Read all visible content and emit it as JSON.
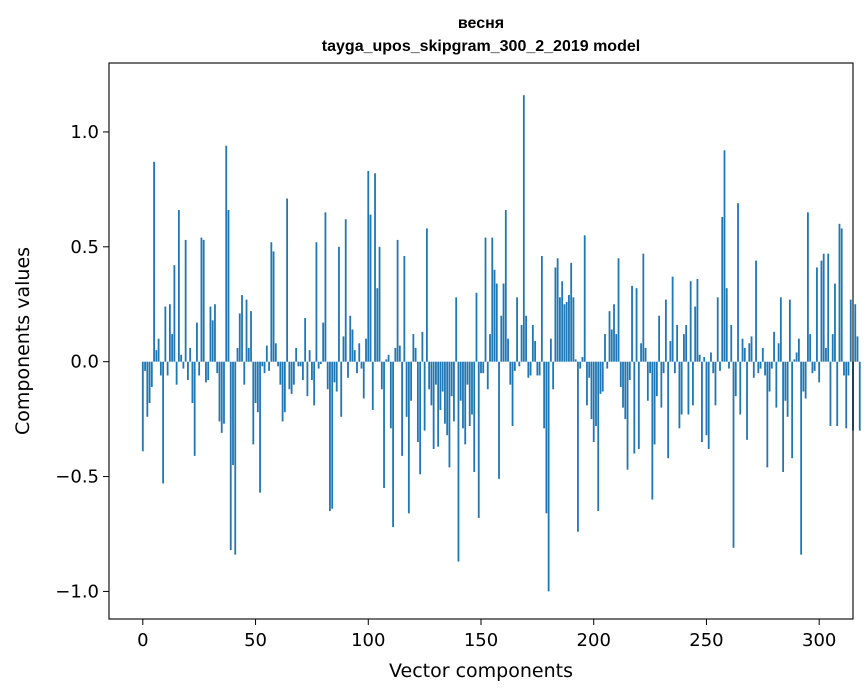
{
  "chart_data": {
    "type": "bar",
    "title_line1": "весня",
    "title_line2": "tayga_upos_skipgram_300_2_2019 model",
    "xlabel": "Vector components",
    "ylabel": "Components values",
    "xlim": [
      -15,
      315
    ],
    "ylim": [
      -1.12,
      1.3
    ],
    "xticks": [
      0,
      50,
      100,
      150,
      200,
      250,
      300
    ],
    "xtick_labels": [
      "0",
      "50",
      "100",
      "150",
      "200",
      "250",
      "300"
    ],
    "yticks": [
      -1.0,
      -0.5,
      0.0,
      0.5,
      1.0
    ],
    "ytick_labels": [
      "−1.0",
      "−0.5",
      "0.0",
      "0.5",
      "1.0"
    ],
    "bar_color": "#1f77b4",
    "values": [
      -0.39,
      -0.04,
      -0.24,
      -0.18,
      -0.11,
      0.87,
      0.05,
      0.1,
      -0.06,
      -0.53,
      0.24,
      -0.06,
      0.25,
      0.12,
      0.42,
      -0.1,
      0.66,
      0.03,
      -0.03,
      0.53,
      -0.08,
      0.06,
      -0.18,
      -0.41,
      0.17,
      -0.06,
      0.54,
      0.53,
      -0.09,
      -0.08,
      0.24,
      0.18,
      0.25,
      -0.05,
      -0.26,
      -0.31,
      -0.27,
      0.94,
      0.66,
      -0.82,
      -0.45,
      -0.84,
      0.06,
      0.21,
      0.29,
      -0.1,
      0.27,
      0.06,
      0.22,
      -0.36,
      -0.18,
      -0.22,
      -0.57,
      -0.02,
      -0.05,
      0.07,
      -0.04,
      0.52,
      0.48,
      0.08,
      -0.02,
      -0.1,
      -0.26,
      -0.22,
      0.71,
      -0.12,
      -0.14,
      -0.1,
      0.06,
      -0.02,
      -0.02,
      -0.08,
      0.19,
      -0.15,
      0.05,
      -0.08,
      -0.19,
      0.52,
      -0.03,
      -0.01,
      0.17,
      0.65,
      -0.12,
      -0.65,
      -0.64,
      -0.09,
      -0.13,
      0.5,
      -0.24,
      0.11,
      0.62,
      -0.07,
      0.2,
      0.14,
      0.05,
      -0.05,
      0.08,
      -0.03,
      -0.16,
      0.1,
      0.83,
      0.64,
      -0.21,
      0.82,
      0.32,
      0.5,
      -0.12,
      -0.55,
      0.01,
      0.03,
      -0.29,
      -0.72,
      0.06,
      0.53,
      0.07,
      -0.41,
      0.46,
      -0.24,
      -0.66,
      -0.17,
      0.12,
      0.06,
      -0.35,
      -0.49,
      0.13,
      -0.3,
      0.58,
      -0.12,
      -0.19,
      -0.38,
      -0.1,
      -0.37,
      -0.21,
      -0.13,
      -0.27,
      -0.32,
      -0.46,
      -0.15,
      -0.26,
      0.28,
      -0.87,
      -0.17,
      -0.29,
      -0.36,
      -0.1,
      -0.28,
      -0.23,
      -0.48,
      0.3,
      -0.68,
      -0.05,
      -0.05,
      0.54,
      -0.12,
      0.12,
      0.54,
      0.4,
      0.34,
      -0.51,
      0.2,
      0.34,
      0.66,
      0.1,
      -0.1,
      -0.28,
      -0.04,
      0.28,
      -0.02,
      0.16,
      1.16,
      0.2,
      -0.07,
      -0.06,
      0.16,
      0.09,
      -0.06,
      -0.06,
      0.46,
      -0.29,
      -0.66,
      -1.0,
      0.1,
      -0.12,
      0.41,
      0.45,
      0.28,
      0.35,
      0.25,
      0.26,
      0.29,
      0.43,
      0.28,
      0.01,
      -0.74,
      -0.03,
      0.02,
      0.55,
      -0.19,
      -0.07,
      -0.25,
      -0.35,
      -0.28,
      -0.65,
      -0.14,
      -0.13,
      0.12,
      -0.03,
      0.22,
      0.14,
      0.25,
      0.12,
      0.45,
      -0.11,
      -0.2,
      -0.25,
      -0.47,
      -0.08,
      0.33,
      -0.4,
      0.32,
      -0.38,
      0.08,
      0.47,
      0.06,
      -0.17,
      -0.05,
      -0.6,
      -0.36,
      -0.15,
      0.2,
      -0.2,
      -0.05,
      0.27,
      -0.42,
      0.09,
      0.37,
      -0.05,
      0.16,
      -0.29,
      -0.23,
      0.12,
      0.16,
      -0.23,
      0.35,
      -0.19,
      0.24,
      0.36,
      0.03,
      -0.35,
      0.02,
      -0.32,
      -0.38,
      0.04,
      -0.05,
      -0.19,
      0.28,
      -0.04,
      0.63,
      0.92,
      0.32,
      -0.03,
      0.16,
      -0.81,
      -0.15,
      0.69,
      -0.23,
      0.1,
      0.06,
      -0.34,
      0.08,
      0.11,
      -0.07,
      0.44,
      -0.05,
      -0.03,
      0.06,
      -0.06,
      -0.46,
      -0.13,
      -0.03,
      0.13,
      -0.2,
      0.08,
      0.28,
      -0.48,
      -0.17,
      -0.24,
      0.27,
      -0.42,
      0.01,
      0.04,
      0.1,
      -0.84,
      -0.13,
      -0.16,
      0.65,
      0.12,
      -0.05,
      -0.04,
      0.41,
      -0.09,
      0.44,
      0.47,
      0.06,
      0.47,
      -0.28,
      0.12,
      0.34,
      -0.28,
      0.6,
      0.58,
      -0.06,
      -0.29,
      -0.06,
      0.27,
      -0.3,
      0.25,
      0.11,
      -0.3
    ]
  }
}
